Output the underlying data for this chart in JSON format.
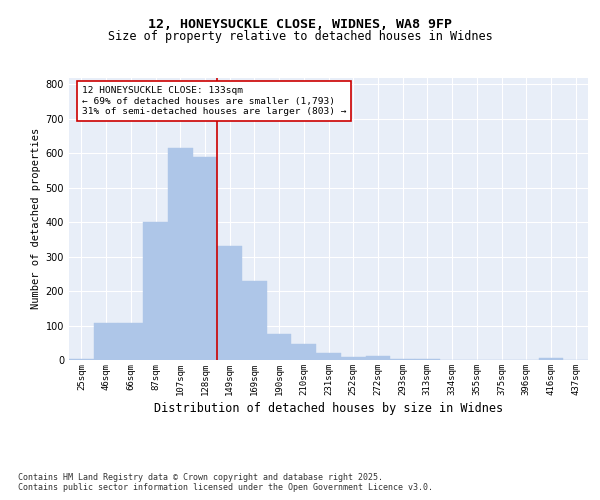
{
  "title_line1": "12, HONEYSUCKLE CLOSE, WIDNES, WA8 9FP",
  "title_line2": "Size of property relative to detached houses in Widnes",
  "xlabel": "Distribution of detached houses by size in Widnes",
  "ylabel": "Number of detached properties",
  "categories": [
    "25sqm",
    "46sqm",
    "66sqm",
    "87sqm",
    "107sqm",
    "128sqm",
    "149sqm",
    "169sqm",
    "190sqm",
    "210sqm",
    "231sqm",
    "252sqm",
    "272sqm",
    "293sqm",
    "313sqm",
    "334sqm",
    "355sqm",
    "375sqm",
    "396sqm",
    "416sqm",
    "437sqm"
  ],
  "values": [
    2,
    107,
    107,
    400,
    615,
    590,
    330,
    230,
    75,
    45,
    20,
    10,
    12,
    4,
    3,
    1,
    1,
    1,
    0,
    5,
    1
  ],
  "bar_color": "#aec6e8",
  "bar_edgecolor": "#aec6e8",
  "vline_x": 5.5,
  "vline_color": "#cc0000",
  "annotation_text": "12 HONEYSUCKLE CLOSE: 133sqm\n← 69% of detached houses are smaller (1,793)\n31% of semi-detached houses are larger (803) →",
  "annotation_box_color": "#ffffff",
  "annotation_box_edgecolor": "#cc0000",
  "ylim": [
    0,
    820
  ],
  "yticks": [
    0,
    100,
    200,
    300,
    400,
    500,
    600,
    700,
    800
  ],
  "background_color": "#e8eef8",
  "grid_color": "#ffffff",
  "footnote": "Contains HM Land Registry data © Crown copyright and database right 2025.\nContains public sector information licensed under the Open Government Licence v3.0.",
  "title_fontsize": 9.5,
  "subtitle_fontsize": 8.5,
  "xlabel_fontsize": 8.5,
  "ylabel_fontsize": 7.5,
  "tick_fontsize": 6.5,
  "annot_fontsize": 6.8,
  "footnote_fontsize": 6.0
}
